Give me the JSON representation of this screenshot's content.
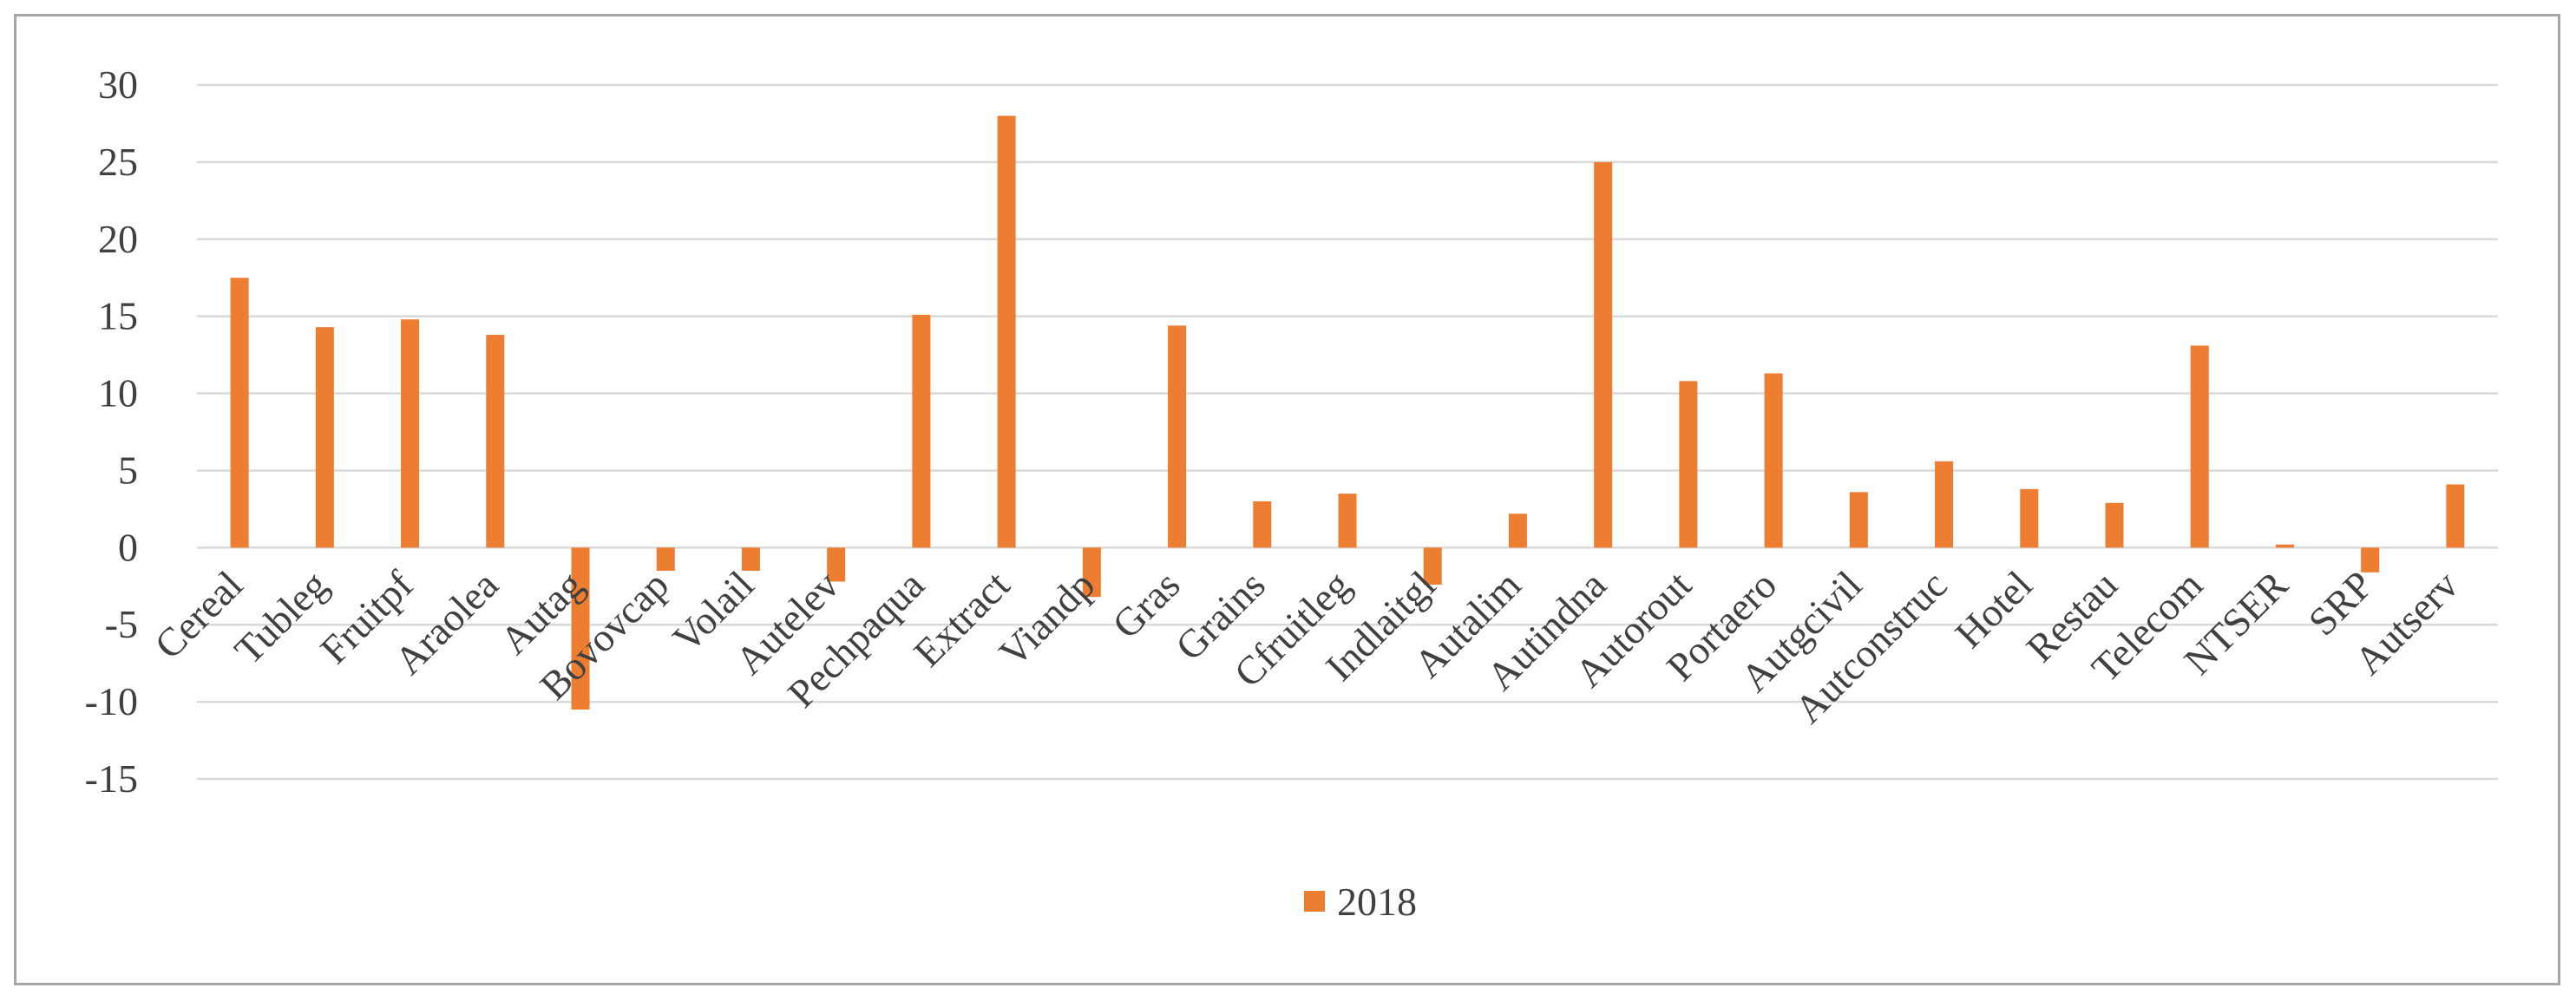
{
  "chart_data": {
    "type": "bar",
    "title": "",
    "xlabel": "",
    "ylabel": "",
    "ylim": [
      -15,
      30
    ],
    "yticks": [
      30,
      25,
      20,
      15,
      10,
      5,
      0,
      -5,
      -10,
      -15
    ],
    "grid": true,
    "legend_position": "bottom",
    "categories": [
      "Cereal",
      "Tubleg",
      "Fruitpf",
      "Araolea",
      "Autag",
      "Bovovcap",
      "Volail",
      "Autelev",
      "Pechpaqua",
      "Extract",
      "Viandp",
      "Gras",
      "Grains",
      "Cfruitleg",
      "Indlaitgl",
      "Autalim",
      "Autindna",
      "Autorout",
      "Portaero",
      "Autgcivil",
      "Autconstruc",
      "Hotel",
      "Restau",
      "Telecom",
      "NTSER",
      "SRP",
      "Autserv"
    ],
    "series": [
      {
        "name": "2018",
        "color": "#ed7d31",
        "values": [
          17.5,
          14.3,
          14.8,
          13.8,
          -10.5,
          -1.5,
          -1.5,
          -2.2,
          15.1,
          28.0,
          -3.2,
          14.4,
          3.0,
          3.5,
          -2.4,
          2.2,
          25.0,
          10.8,
          11.3,
          3.6,
          5.6,
          3.8,
          2.9,
          13.1,
          0.2,
          -1.6,
          4.1
        ]
      }
    ]
  }
}
